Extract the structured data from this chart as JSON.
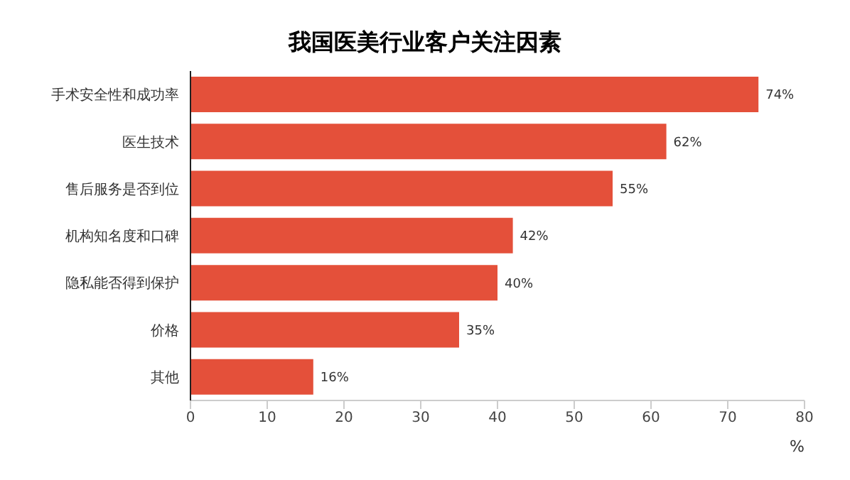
{
  "chart_data": {
    "type": "bar",
    "orientation": "horizontal",
    "title": "我国医美行业客户关注因素",
    "xlabel": "%",
    "categories": [
      "手术安全性和成功率",
      "医生技术",
      "售后服务是否到位",
      "机构知名度和口碑",
      "隐私能否得到保护",
      "价格",
      "其他"
    ],
    "values": [
      74,
      62,
      55,
      42,
      40,
      35,
      16
    ],
    "value_labels": [
      "74%",
      "62%",
      "55%",
      "42%",
      "40%",
      "35%",
      "16%"
    ],
    "color": "#e4503a",
    "xlim": [
      0,
      80
    ],
    "xticks": [
      0,
      10,
      20,
      30,
      40,
      50,
      60,
      70,
      80
    ],
    "grid": false,
    "legend": false
  }
}
